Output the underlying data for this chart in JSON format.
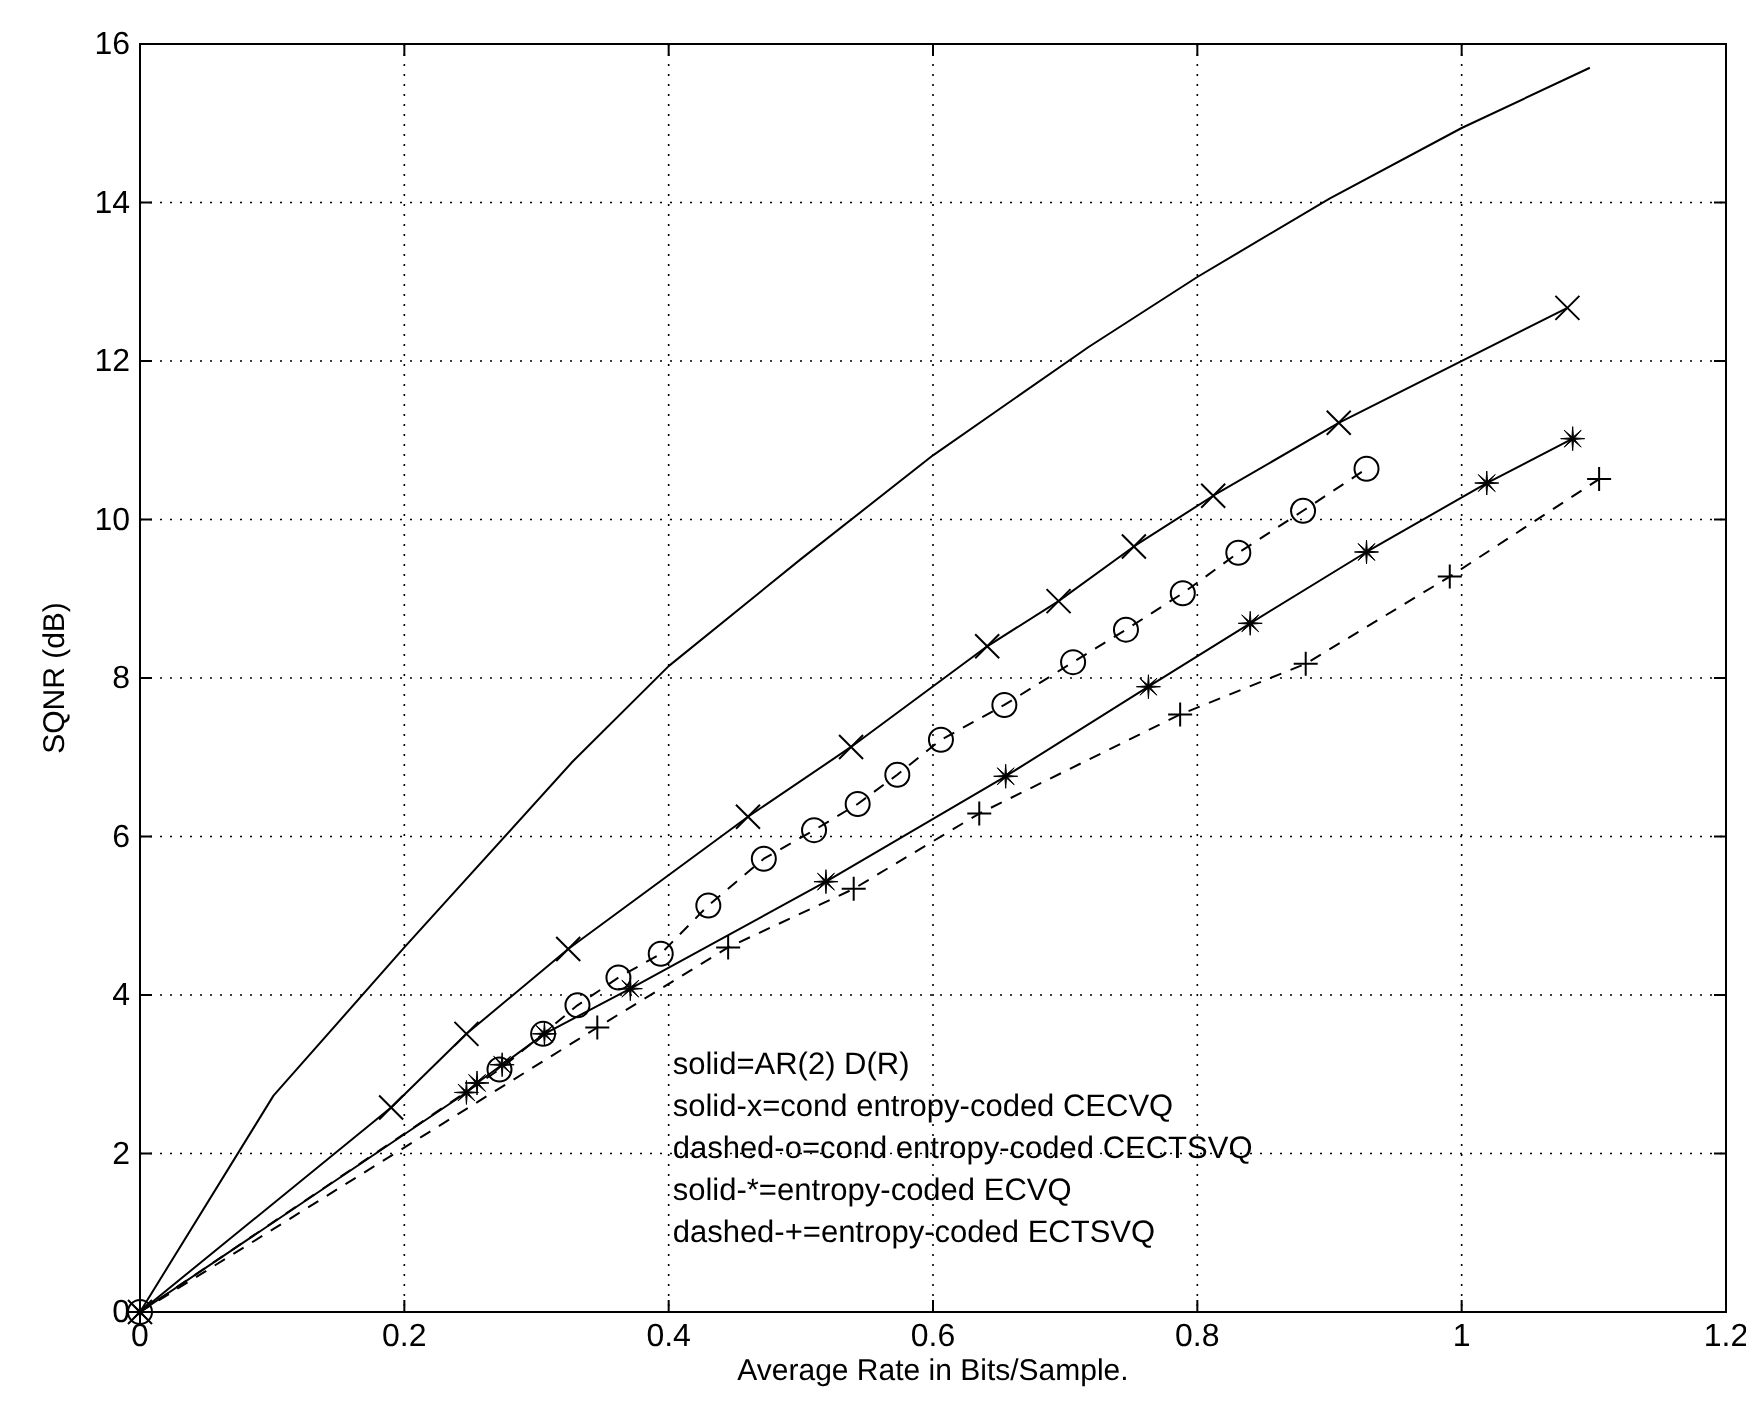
{
  "chart_data": {
    "type": "line",
    "xlabel": "Average Rate in Bits/Sample.",
    "ylabel": "SQNR (dB)",
    "xlim": [
      0,
      1.2
    ],
    "ylim": [
      0,
      16
    ],
    "xticks": [
      0,
      0.2,
      0.4,
      0.6,
      0.8,
      1,
      1.2
    ],
    "yticks": [
      0,
      2,
      4,
      6,
      8,
      10,
      12,
      14,
      16
    ],
    "grid": true,
    "series": [
      {
        "color": "#000000",
        "marker": "cross",
        "line_style": "solid",
        "x": [
          0,
          0.19,
          0.247,
          0.324,
          0.46,
          0.538,
          0.641,
          0.695,
          0.752,
          0.812,
          0.907,
          1.08
        ],
        "values": [
          0,
          2.58,
          3.51,
          4.58,
          6.25,
          7.13,
          8.4,
          8.97,
          9.66,
          10.3,
          11.22,
          12.67
        ]
      },
      {
        "color": "#000000",
        "marker": "circle",
        "line_style": "dashed",
        "x": [
          0,
          0.272,
          0.305,
          0.331,
          0.362,
          0.394,
          0.43,
          0.472,
          0.51,
          0.543,
          0.573,
          0.606,
          0.654,
          0.706,
          0.746,
          0.789,
          0.831,
          0.88,
          0.928
        ],
        "values": [
          0,
          3.06,
          3.51,
          3.87,
          4.22,
          4.52,
          5.13,
          5.72,
          6.08,
          6.41,
          6.78,
          7.22,
          7.66,
          8.2,
          8.61,
          9.07,
          9.58,
          10.11,
          10.64
        ]
      },
      {
        "color": "#000000",
        "marker": "star",
        "line_style": "solid",
        "x": [
          0,
          0.247,
          0.255,
          0.274,
          0.306,
          0.371,
          0.519,
          0.655,
          0.763,
          0.84,
          0.928,
          1.019,
          1.084
        ],
        "values": [
          0,
          2.77,
          2.89,
          3.12,
          3.51,
          4.08,
          5.43,
          6.76,
          7.89,
          8.69,
          9.59,
          10.46,
          11.02
        ]
      },
      {
        "color": "#000000",
        "marker": "plus",
        "line_style": "dashed",
        "x": [
          0,
          0.346,
          0.445,
          0.54,
          0.635,
          0.787,
          0.882,
          0.991,
          1.104
        ],
        "values": [
          0,
          3.59,
          4.6,
          5.34,
          6.29,
          7.54,
          8.18,
          9.28,
          10.51
        ]
      },
      {
        "color": "#000000",
        "marker": "none",
        "line_style": "solid",
        "x": [
          0,
          0.101,
          0.2,
          0.327,
          0.4,
          0.5,
          0.6,
          0.718,
          0.8,
          0.9,
          1.0,
          1.097
        ],
        "values": [
          0,
          2.73,
          4.6,
          6.94,
          8.15,
          9.5,
          10.81,
          12.18,
          13.06,
          14.05,
          14.94,
          15.7
        ]
      }
    ],
    "annotations": [
      "solid=AR(2) D(R)",
      "solid-x=cond entropy-coded CECVQ",
      "dashed-o=cond entropy-coded CECTSVQ",
      "solid-*=entropy-coded ECVQ",
      "dashed-+=entropy-coded ECTSVQ"
    ]
  }
}
